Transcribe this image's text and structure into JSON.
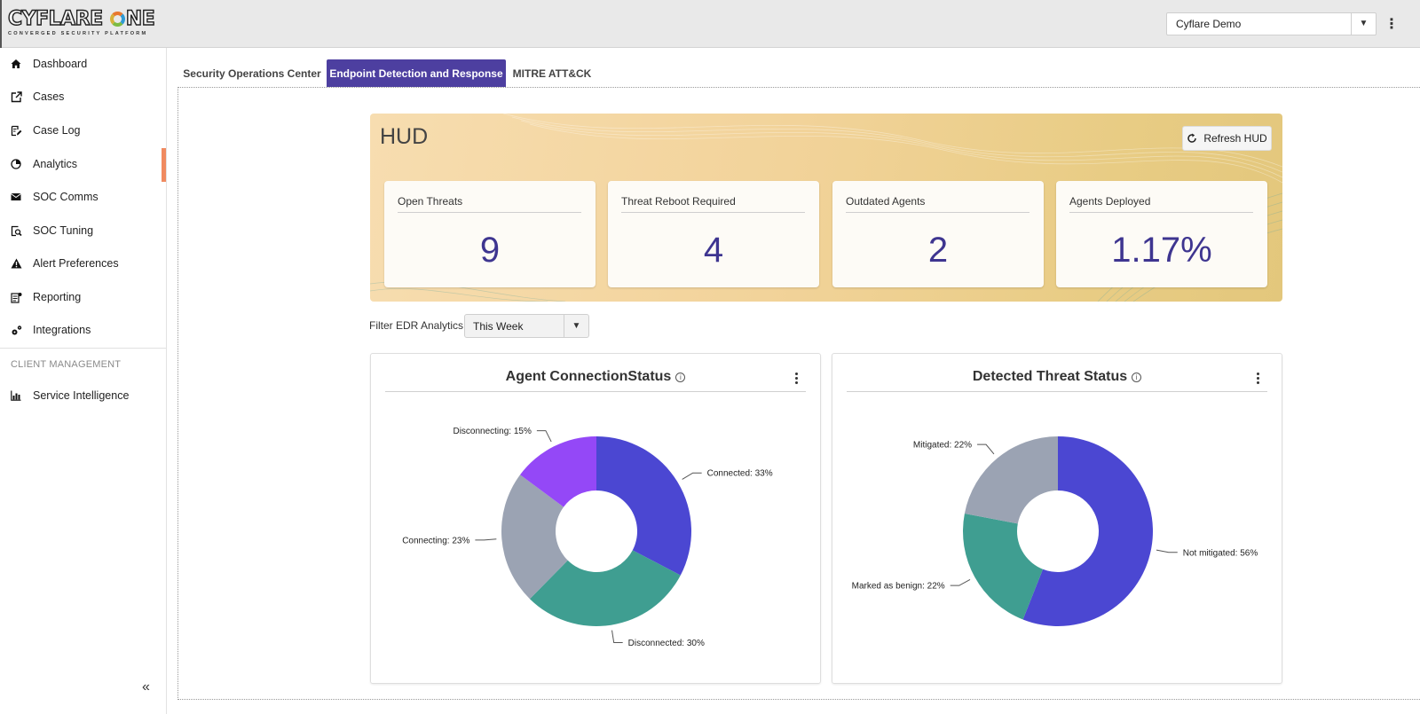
{
  "app": {
    "logo_text": "CYFLARE ONE",
    "logo_sub": "CONVERGED SECURITY PLATFORM",
    "org_selector": "Cyflare Demo"
  },
  "sidebar": {
    "items": [
      {
        "label": "Dashboard",
        "icon": "home-icon"
      },
      {
        "label": "Cases",
        "icon": "external-link-icon"
      },
      {
        "label": "Case Log",
        "icon": "edit-list-icon"
      },
      {
        "label": "Analytics",
        "icon": "pie-chart-icon",
        "active": true
      },
      {
        "label": "SOC Comms",
        "icon": "envelope-icon"
      },
      {
        "label": "SOC Tuning",
        "icon": "doc-search-icon"
      },
      {
        "label": "Alert Preferences",
        "icon": "warning-icon"
      },
      {
        "label": "Reporting",
        "icon": "report-icon"
      },
      {
        "label": "Integrations",
        "icon": "gears-icon"
      }
    ],
    "section_label": "CLIENT MANAGEMENT",
    "client_items": [
      {
        "label": "Service Intelligence",
        "icon": "bar-chart-icon"
      }
    ],
    "collapse_glyph": "«"
  },
  "tabs": [
    {
      "label": "Security Operations Center",
      "active": false
    },
    {
      "label": "Endpoint Detection and Response",
      "active": true
    },
    {
      "label": "MITRE ATT&CK",
      "active": false
    }
  ],
  "hud": {
    "title": "HUD",
    "refresh_label": "Refresh HUD",
    "cards": [
      {
        "title": "Open Threats",
        "value": "9"
      },
      {
        "title": "Threat Reboot Required",
        "value": "4"
      },
      {
        "title": "Outdated Agents",
        "value": "2"
      },
      {
        "title": "Agents Deployed",
        "value": "1.17%"
      }
    ]
  },
  "filter": {
    "label": "Filter EDR Analytics:",
    "selected": "This Week"
  },
  "colors": {
    "accent": "#4d3fa0",
    "stat_value": "#3e3590"
  },
  "chart_data": [
    {
      "type": "pie",
      "title": "Agent ConnectionStatus",
      "series": [
        {
          "label": "Connected: 33%",
          "value": 33,
          "color": "#4b47d2"
        },
        {
          "label": "Disconnected: 30%",
          "value": 30,
          "color": "#3f9e91"
        },
        {
          "label": "Connecting: 23%",
          "value": 23,
          "color": "#9ba3b3"
        },
        {
          "label": "Disconnecting: 15%",
          "value": 15,
          "color": "#9448f7"
        }
      ]
    },
    {
      "type": "pie",
      "title": "Detected Threat Status",
      "series": [
        {
          "label": "Not mitigated: 56%",
          "value": 56,
          "color": "#4b47d2"
        },
        {
          "label": "Marked as benign: 22%",
          "value": 22,
          "color": "#3f9e91"
        },
        {
          "label": "Mitigated: 22%",
          "value": 22,
          "color": "#9ba3b3"
        }
      ]
    }
  ]
}
